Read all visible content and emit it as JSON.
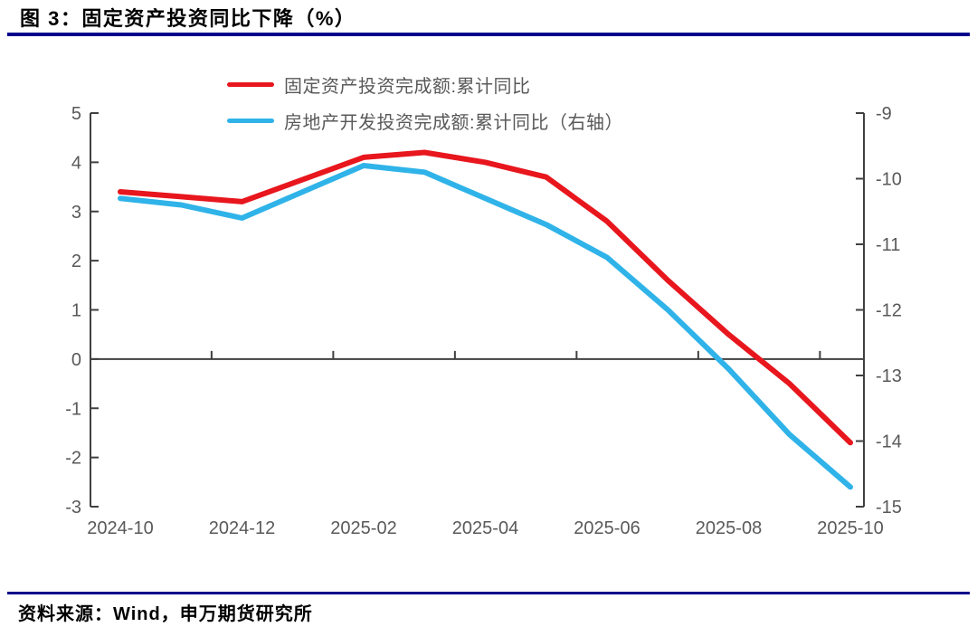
{
  "header": {
    "title": "图 3：固定资产投资同比下降（%）"
  },
  "footer": {
    "source": "资料来源：Wind，申万期货研究所"
  },
  "colors": {
    "divider": "#00008b",
    "axis_line": "#404040",
    "tick_label": "#595959",
    "red_series": "#e8161d",
    "blue_series": "#2fb3e8"
  },
  "chart_data": {
    "type": "line",
    "title": "图 3：固定资产投资同比下降（%）",
    "grid": false,
    "legend_position": "top-center",
    "x_labels": [
      "2024-10",
      "2024-11",
      "2024-12",
      "2025-02",
      "2025-03",
      "2025-04",
      "2025-05",
      "2025-06",
      "2025-07",
      "2025-08",
      "2025-09",
      "2025-10"
    ],
    "x_months": [
      0,
      1,
      2,
      4,
      5,
      6,
      7,
      8,
      9,
      10,
      11,
      12
    ],
    "x_range_months": [
      0,
      12
    ],
    "x_tick_labels": [
      "2024-10",
      "2024-12",
      "2025-02",
      "2025-04",
      "2025-06",
      "2025-08",
      "2025-10"
    ],
    "x_tick_label_months": [
      0,
      2,
      4,
      6,
      8,
      10,
      12
    ],
    "x_axis_tick_months": [
      1.5,
      3.5,
      5.5,
      7.5,
      9.5,
      11.5
    ],
    "left_axis": {
      "range": [
        -3,
        5
      ],
      "ticks": [
        5,
        4,
        3,
        2,
        1,
        0,
        -1,
        -2,
        -3
      ]
    },
    "right_axis": {
      "range": [
        -15,
        -9
      ],
      "ticks": [
        -9,
        -10,
        -11,
        -12,
        -13,
        -14,
        -15
      ]
    },
    "series": [
      {
        "name": "固定资产投资完成额:累计同比",
        "axis": "left",
        "color": "#e8161d",
        "values": [
          3.4,
          3.3,
          3.2,
          4.1,
          4.2,
          4.0,
          3.7,
          2.8,
          1.6,
          0.5,
          -0.5,
          -1.7
        ]
      },
      {
        "name": "房地产开发投资完成额:累计同比（右轴）",
        "axis": "right",
        "color": "#2fb3e8",
        "values": [
          -10.3,
          -10.4,
          -10.6,
          -9.8,
          -9.9,
          -10.3,
          -10.7,
          -11.2,
          -12.0,
          -12.9,
          -13.9,
          -14.7
        ]
      }
    ]
  }
}
